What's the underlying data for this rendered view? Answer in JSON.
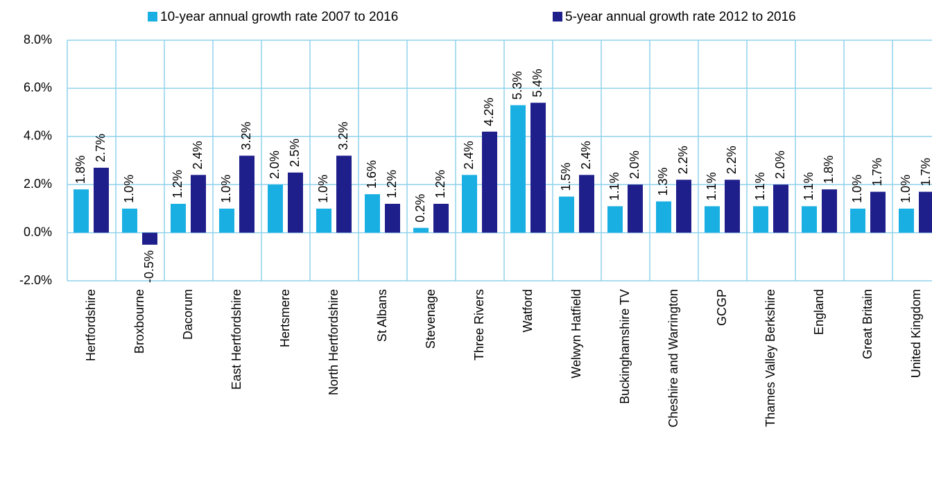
{
  "chart_data": {
    "type": "bar",
    "categories": [
      "Hertfordshire",
      "Broxbourne",
      "Dacorum",
      "East Hertfordshire",
      "Hertsmere",
      "North Hertfordshire",
      "St Albans",
      "Stevenage",
      "Three Rivers",
      "Watford",
      "Welwyn Hatfield",
      "Buckinghamshire TV",
      "Cheshire and Warrington",
      "GCGP",
      "Thames Valley Berkshire",
      "England",
      "Great Britain",
      "United Kingdom"
    ],
    "series": [
      {
        "name": "10-year annual growth rate 2007 to 2016",
        "color": "#1aafe3",
        "values": [
          1.8,
          1.0,
          1.2,
          1.0,
          2.0,
          1.0,
          1.6,
          0.2,
          2.4,
          5.3,
          1.5,
          1.1,
          1.3,
          1.1,
          1.1,
          1.1,
          1.0,
          1.0
        ],
        "value_labels": [
          "1.8%",
          "1.0%",
          "1.2%",
          "1.0%",
          "2.0%",
          "1.0%",
          "1.6%",
          "0.2%",
          "2.4%",
          "5.3%",
          "1.5%",
          "1.1%",
          "1.3%",
          "1.1%",
          "1.1%",
          "1.1%",
          "1.0%",
          "1.0%"
        ]
      },
      {
        "name": "5-year annual growth rate 2012 to 2016",
        "color": "#1f1f8c",
        "values": [
          2.7,
          -0.5,
          2.4,
          3.2,
          2.5,
          3.2,
          1.2,
          1.2,
          4.2,
          5.4,
          2.4,
          2.0,
          2.2,
          2.2,
          2.0,
          1.8,
          1.7,
          1.7
        ],
        "value_labels": [
          "2.7%",
          "-0.5%",
          "2.4%",
          "3.2%",
          "2.5%",
          "3.2%",
          "1.2%",
          "1.2%",
          "4.2%",
          "5.4%",
          "2.4%",
          "2.0%",
          "2.2%",
          "2.2%",
          "2.0%",
          "1.8%",
          "1.7%",
          "1.7%"
        ]
      }
    ],
    "ylim": [
      -2,
      8
    ],
    "yticks": [
      {
        "value": -2,
        "label": "-2.0%"
      },
      {
        "value": 0,
        "label": "0.0%"
      },
      {
        "value": 2,
        "label": "2.0%"
      },
      {
        "value": 4,
        "label": "4.0%"
      },
      {
        "value": 6,
        "label": "6.0%"
      },
      {
        "value": 8,
        "label": "8.0%"
      }
    ],
    "grid": true,
    "legend": "top"
  }
}
